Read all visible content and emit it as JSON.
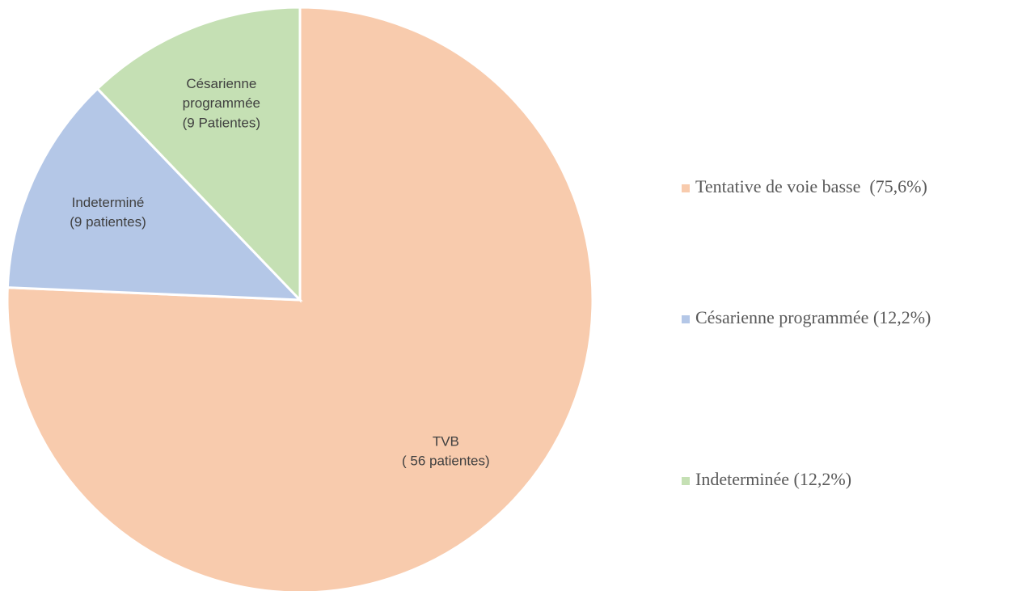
{
  "chart_data": {
    "type": "pie",
    "categories": [
      "Tentative de voie basse  (75,6%)",
      "Césarienne programmée (12,2%)",
      "Indeterminée (12,2%)"
    ],
    "colors": [
      "#f8cbad",
      "#b4c7e7",
      "#c5e0b4"
    ],
    "values": [
      56,
      9,
      9
    ],
    "slice_names": [
      "TVB",
      "Indeterminé",
      "Césarienne programmée"
    ],
    "value_labels": [
      "( 56 patientes)",
      "(9 patientes)",
      "(9 Patientes)"
    ]
  }
}
